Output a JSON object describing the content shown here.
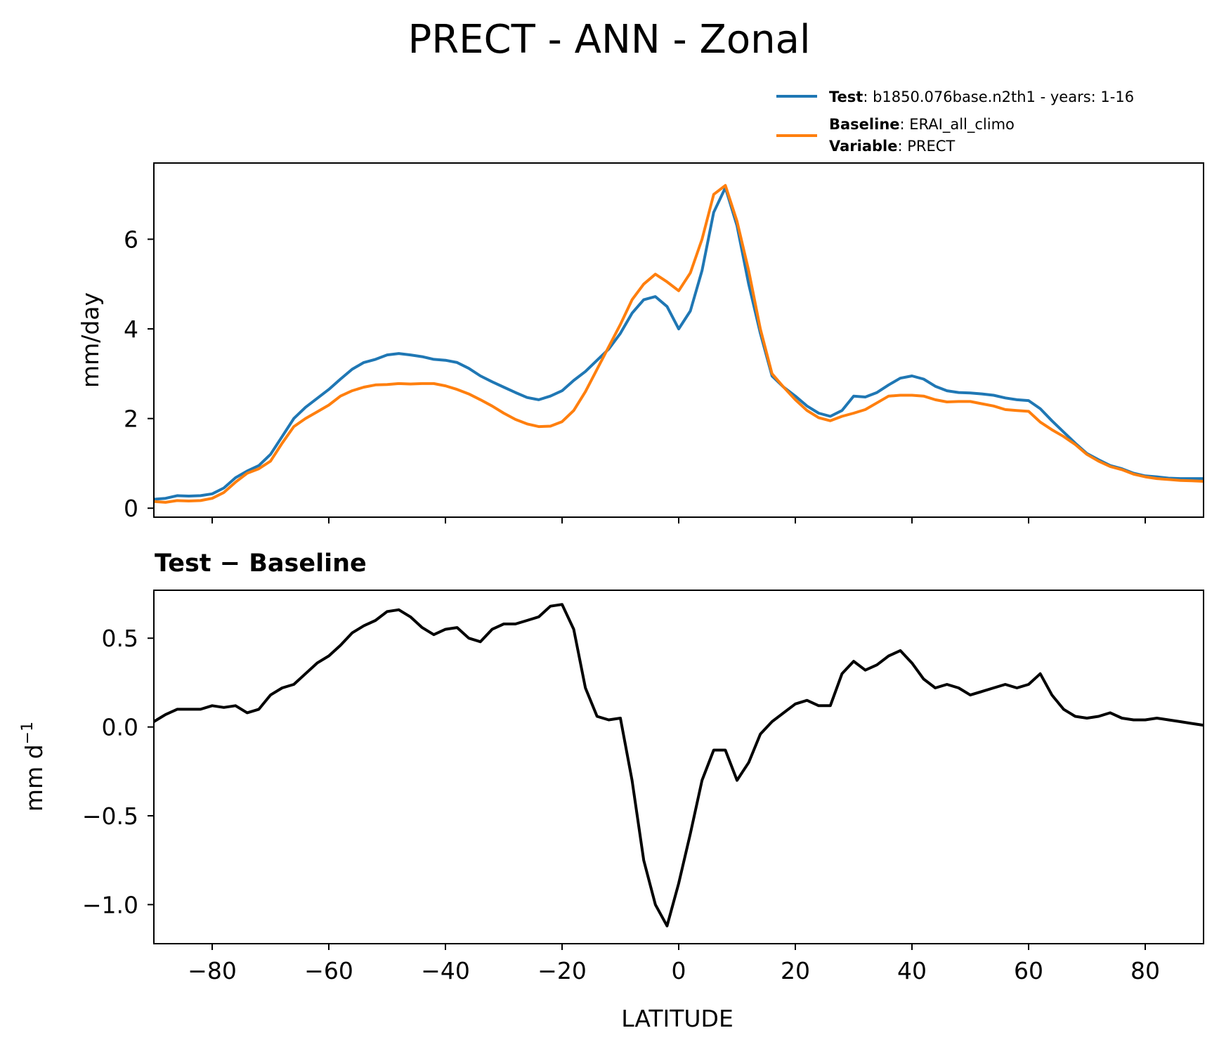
{
  "title": "PRECT - ANN - Zonal",
  "colors": {
    "test": "#1f77b4",
    "baseline": "#ff7f0e",
    "difference": "#000000"
  },
  "legend": {
    "test_key": "Test",
    "test_value": ": b1850.076base.n2th1 - years: 1-16",
    "baseline_key": "Baseline",
    "baseline_value": ": ERAI_all_climo",
    "variable_key": "Variable",
    "variable_value": ": PRECT"
  },
  "top_panel": {
    "ylabel": "mm/day",
    "yticks": [
      "0",
      "2",
      "4",
      "6"
    ]
  },
  "bottom_panel": {
    "title_a": "Test",
    "title_op": " − ",
    "title_b": "Baseline",
    "ylabel_text": "mm d",
    "ylabel_sup": "−1",
    "yticks": [
      "0.5",
      "0.0",
      "−0.5",
      "−1.0"
    ]
  },
  "xaxis": {
    "label": "LATITUDE",
    "ticks": [
      "−80",
      "−60",
      "−40",
      "−20",
      "0",
      "20",
      "40",
      "60",
      "80"
    ]
  },
  "chart_data": [
    {
      "type": "line",
      "ylabel": "mm/day",
      "xlim": [
        -90,
        90
      ],
      "ylim": [
        -0.2,
        7.7
      ],
      "series": [
        {
          "name": "Test",
          "x": [
            -90,
            -88,
            -86,
            -84,
            -82,
            -80,
            -78,
            -76,
            -74,
            -72,
            -70,
            -68,
            -66,
            -64,
            -62,
            -60,
            -58,
            -56,
            -54,
            -52,
            -50,
            -48,
            -46,
            -44,
            -42,
            -40,
            -38,
            -36,
            -34,
            -32,
            -30,
            -28,
            -26,
            -24,
            -22,
            -20,
            -18,
            -16,
            -14,
            -12,
            -10,
            -8,
            -6,
            -4,
            -2,
            0,
            2,
            4,
            6,
            8,
            10,
            12,
            14,
            16,
            18,
            20,
            22,
            24,
            26,
            28,
            30,
            32,
            34,
            36,
            38,
            40,
            42,
            44,
            46,
            48,
            50,
            52,
            54,
            56,
            58,
            60,
            62,
            64,
            66,
            68,
            70,
            72,
            74,
            76,
            78,
            80,
            82,
            84,
            86,
            88,
            90
          ],
          "y": [
            0.2,
            0.22,
            0.28,
            0.27,
            0.28,
            0.32,
            0.45,
            0.68,
            0.83,
            0.95,
            1.2,
            1.6,
            2.0,
            2.25,
            2.45,
            2.65,
            2.88,
            3.1,
            3.25,
            3.32,
            3.42,
            3.45,
            3.42,
            3.38,
            3.32,
            3.3,
            3.25,
            3.12,
            2.95,
            2.82,
            2.7,
            2.58,
            2.47,
            2.42,
            2.5,
            2.62,
            2.85,
            3.05,
            3.3,
            3.55,
            3.9,
            4.35,
            4.65,
            4.72,
            4.5,
            4.0,
            4.4,
            5.3,
            6.6,
            7.15,
            6.3,
            5.0,
            3.9,
            2.95,
            2.7,
            2.5,
            2.28,
            2.12,
            2.05,
            2.18,
            2.5,
            2.48,
            2.58,
            2.75,
            2.9,
            2.95,
            2.88,
            2.72,
            2.62,
            2.58,
            2.57,
            2.55,
            2.52,
            2.46,
            2.42,
            2.4,
            2.22,
            1.95,
            1.7,
            1.45,
            1.22,
            1.08,
            0.95,
            0.88,
            0.78,
            0.72,
            0.7,
            0.67,
            0.66,
            0.66,
            0.66
          ]
        },
        {
          "name": "Baseline",
          "x": [
            -90,
            -88,
            -86,
            -84,
            -82,
            -80,
            -78,
            -76,
            -74,
            -72,
            -70,
            -68,
            -66,
            -64,
            -62,
            -60,
            -58,
            -56,
            -54,
            -52,
            -50,
            -48,
            -46,
            -44,
            -42,
            -40,
            -38,
            -36,
            -34,
            -32,
            -30,
            -28,
            -26,
            -24,
            -22,
            -20,
            -18,
            -16,
            -14,
            -12,
            -10,
            -8,
            -6,
            -4,
            -2,
            0,
            2,
            4,
            6,
            8,
            10,
            12,
            14,
            16,
            18,
            20,
            22,
            24,
            26,
            28,
            30,
            32,
            34,
            36,
            38,
            40,
            42,
            44,
            46,
            48,
            50,
            52,
            54,
            56,
            58,
            60,
            62,
            64,
            66,
            68,
            70,
            72,
            74,
            76,
            78,
            80,
            82,
            84,
            86,
            88,
            90
          ],
          "y": [
            0.15,
            0.13,
            0.17,
            0.16,
            0.17,
            0.22,
            0.35,
            0.58,
            0.78,
            0.88,
            1.05,
            1.45,
            1.82,
            2.0,
            2.15,
            2.3,
            2.5,
            2.62,
            2.7,
            2.75,
            2.76,
            2.78,
            2.77,
            2.78,
            2.78,
            2.73,
            2.65,
            2.55,
            2.42,
            2.28,
            2.12,
            1.98,
            1.88,
            1.82,
            1.83,
            1.93,
            2.18,
            2.6,
            3.1,
            3.6,
            4.1,
            4.65,
            5.0,
            5.22,
            5.05,
            4.85,
            5.25,
            6.0,
            7.0,
            7.2,
            6.4,
            5.3,
            4.0,
            3.0,
            2.7,
            2.42,
            2.18,
            2.02,
            1.95,
            2.05,
            2.12,
            2.2,
            2.35,
            2.5,
            2.52,
            2.52,
            2.5,
            2.42,
            2.37,
            2.38,
            2.38,
            2.33,
            2.28,
            2.2,
            2.18,
            2.16,
            1.92,
            1.75,
            1.6,
            1.42,
            1.2,
            1.05,
            0.93,
            0.86,
            0.76,
            0.7,
            0.66,
            0.64,
            0.62,
            0.61,
            0.6
          ]
        }
      ]
    },
    {
      "type": "line",
      "title": "Test − Baseline",
      "xlabel": "LATITUDE",
      "ylabel": "mm d⁻¹",
      "xlim": [
        -90,
        90
      ],
      "ylim": [
        -1.22,
        0.77
      ],
      "series": [
        {
          "name": "Test − Baseline",
          "x": [
            -90,
            -88,
            -86,
            -84,
            -82,
            -80,
            -78,
            -76,
            -74,
            -72,
            -70,
            -68,
            -66,
            -64,
            -62,
            -60,
            -58,
            -56,
            -54,
            -52,
            -50,
            -48,
            -46,
            -44,
            -42,
            -40,
            -38,
            -36,
            -34,
            -32,
            -30,
            -28,
            -26,
            -24,
            -22,
            -20,
            -18,
            -16,
            -14,
            -12,
            -10,
            -8,
            -6,
            -4,
            -2,
            0,
            2,
            4,
            6,
            8,
            10,
            12,
            14,
            16,
            18,
            20,
            22,
            24,
            26,
            28,
            30,
            32,
            34,
            36,
            38,
            40,
            42,
            44,
            46,
            48,
            50,
            52,
            54,
            56,
            58,
            60,
            62,
            64,
            66,
            68,
            70,
            72,
            74,
            76,
            78,
            80,
            82,
            84,
            86,
            88,
            90
          ],
          "y": [
            0.03,
            0.07,
            0.1,
            0.1,
            0.1,
            0.12,
            0.11,
            0.12,
            0.08,
            0.1,
            0.18,
            0.22,
            0.24,
            0.3,
            0.36,
            0.4,
            0.46,
            0.53,
            0.57,
            0.6,
            0.65,
            0.66,
            0.62,
            0.56,
            0.52,
            0.55,
            0.56,
            0.5,
            0.48,
            0.55,
            0.58,
            0.58,
            0.6,
            0.62,
            0.68,
            0.69,
            0.55,
            0.22,
            0.06,
            0.04,
            0.05,
            -0.3,
            -0.75,
            -1.0,
            -1.12,
            -0.88,
            -0.6,
            -0.3,
            -0.13,
            -0.13,
            -0.3,
            -0.2,
            -0.04,
            0.03,
            0.08,
            0.13,
            0.15,
            0.12,
            0.12,
            0.3,
            0.37,
            0.32,
            0.35,
            0.4,
            0.43,
            0.36,
            0.27,
            0.22,
            0.24,
            0.22,
            0.18,
            0.2,
            0.22,
            0.24,
            0.22,
            0.24,
            0.3,
            0.18,
            0.1,
            0.06,
            0.05,
            0.06,
            0.08,
            0.05,
            0.04,
            0.04,
            0.05,
            0.04,
            0.03,
            0.02,
            0.01
          ]
        }
      ]
    }
  ]
}
